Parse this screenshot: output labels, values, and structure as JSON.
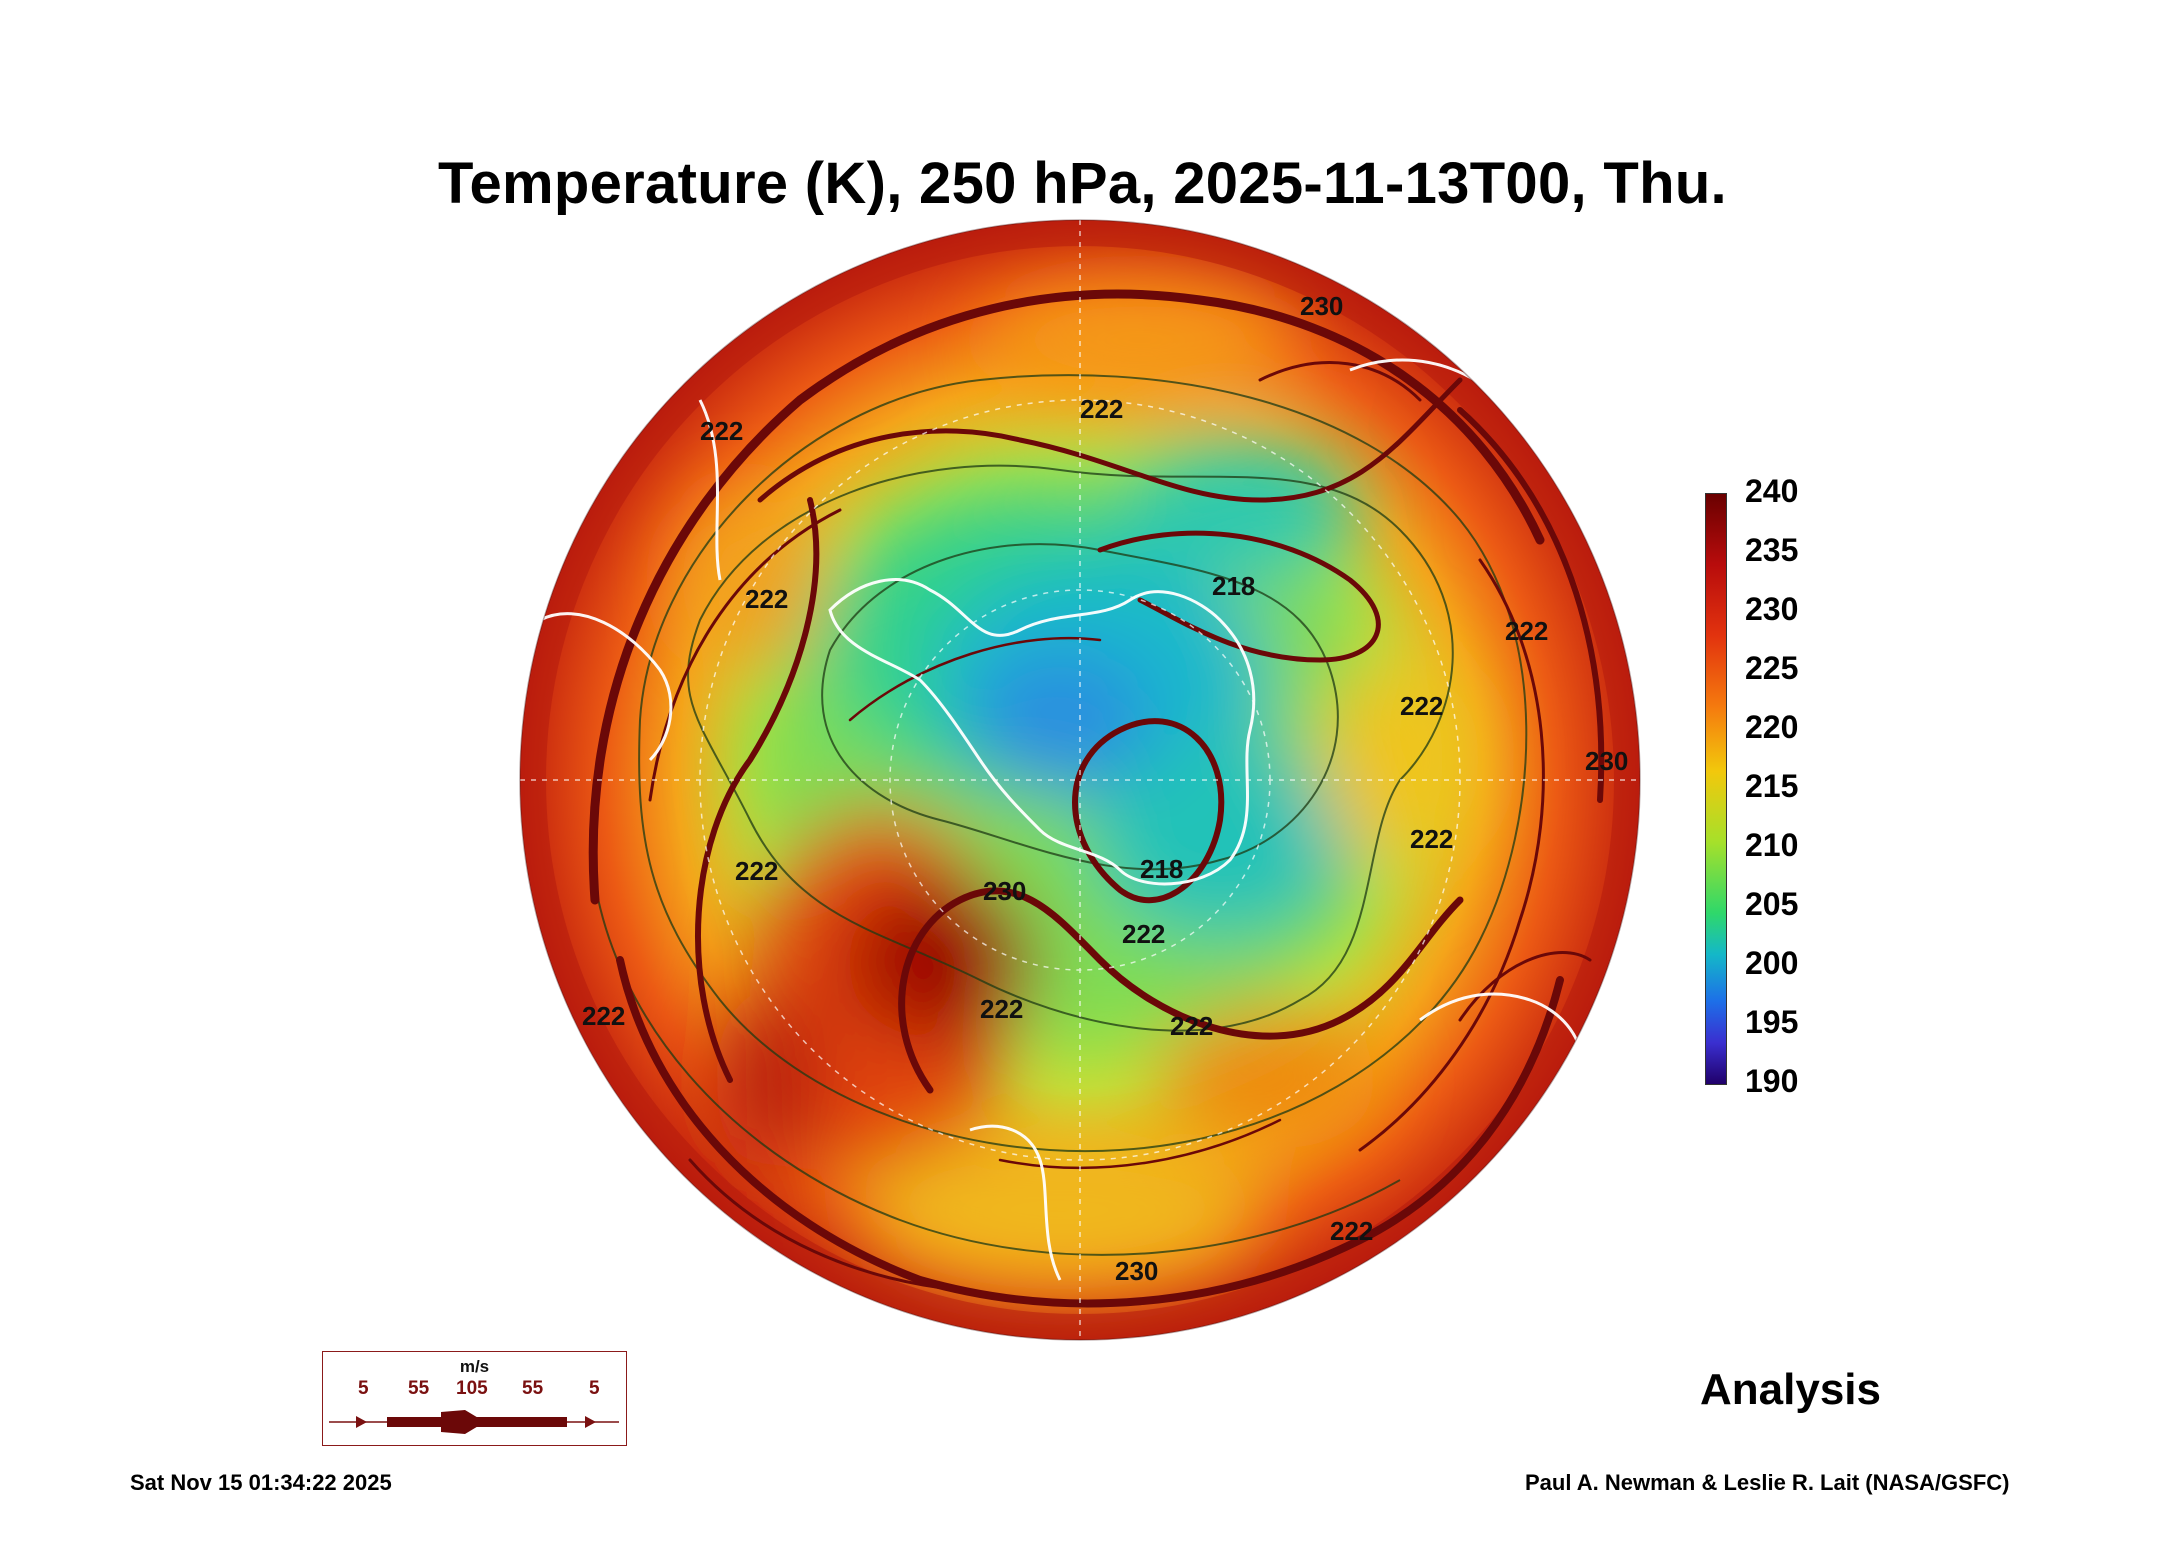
{
  "title": "Temperature (K), 250 hPa, 2025-11-13T00, Thu.",
  "colorbar": {
    "ticks": [
      "240",
      "235",
      "230",
      "225",
      "220",
      "215",
      "210",
      "205",
      "200",
      "195",
      "190"
    ],
    "min": 190,
    "max": 240,
    "units": "K"
  },
  "contour_labels": [
    "230",
    "222",
    "222",
    "222",
    "218",
    "222",
    "222",
    "222",
    "230",
    "222",
    "222",
    "222",
    "218",
    "222",
    "222",
    "230",
    "222",
    "230"
  ],
  "wind_legend": {
    "unit": "m/s",
    "speeds": [
      "5",
      "55",
      "105",
      "55",
      "5"
    ]
  },
  "analysis_label": "Analysis",
  "timestamp": "Sat Nov 15 01:34:22 2025",
  "credit": "Paul A. Newman & Leslie R. Lait (NASA/GSFC)",
  "colors": {
    "hot": "#8b0000",
    "warm": "#e8401a",
    "mid": "#f5c400",
    "cool": "#8fe040",
    "cold": "#19b7d8",
    "streamline": "#6b0808",
    "coastline": "#ffffff"
  }
}
